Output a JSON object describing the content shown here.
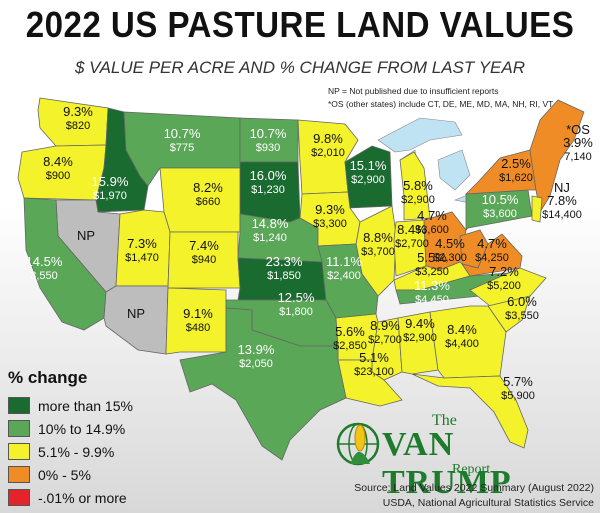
{
  "title": "2022 US PASTURE LAND VALUES",
  "subtitle": "$ VALUE PER ACRE AND % CHANGE FROM LAST YEAR",
  "notes": [
    "NP = Not published due to insufficient reports",
    "*OS (other states) include CT, DE, ME, MD, MA, NH, RI, VT"
  ],
  "legend": {
    "title": "% change",
    "items": [
      {
        "label": "more than 15%",
        "color": "#1a6b30"
      },
      {
        "label": "10% to 14.9%",
        "color": "#5aa857"
      },
      {
        "label": "5.1% - 9.9%",
        "color": "#f4f22a"
      },
      {
        "label": "0% - 5%",
        "color": "#f08c26"
      },
      {
        "label": "-.01% or more",
        "color": "#e4232a"
      }
    ]
  },
  "logo": {
    "the": "The",
    "name": "VAN TRUMP",
    "report": "Report"
  },
  "source": [
    "Source: Land Values 2022 Summary (August 2022)",
    "USDA, National Agricultural Statistics Service"
  ],
  "states": [
    {
      "id": "WA",
      "pct": "9.3%",
      "val": "$820",
      "cat": "yellow"
    },
    {
      "id": "OR",
      "pct": "8.4%",
      "val": "$900",
      "cat": "yellow"
    },
    {
      "id": "ID",
      "pct": "15.9%",
      "val": "$1,970",
      "cat": "dark"
    },
    {
      "id": "MT",
      "pct": "10.7%",
      "val": "$775",
      "cat": "green"
    },
    {
      "id": "ND",
      "pct": "10.7%",
      "val": "$930",
      "cat": "green"
    },
    {
      "id": "MN",
      "pct": "9.8%",
      "val": "$2,010",
      "cat": "yellow"
    },
    {
      "id": "WI",
      "pct": "15.1%",
      "val": "$2,900",
      "cat": "dark"
    },
    {
      "id": "SD",
      "pct": "16.0%",
      "val": "$1,230",
      "cat": "dark"
    },
    {
      "id": "WY",
      "pct": "8.2%",
      "val": "$660",
      "cat": "yellow"
    },
    {
      "id": "NV",
      "pct": "NP",
      "val": "",
      "cat": "gray"
    },
    {
      "id": "CA",
      "pct": "14.5%",
      "val": "3,550",
      "cat": "green"
    },
    {
      "id": "UT",
      "pct": "7.3%",
      "val": "$1,470",
      "cat": "yellow"
    },
    {
      "id": "CO",
      "pct": "7.4%",
      "val": "$940",
      "cat": "yellow"
    },
    {
      "id": "NE",
      "pct": "14.8%",
      "val": "$1,240",
      "cat": "green"
    },
    {
      "id": "IA",
      "pct": "9.3%",
      "val": "$3,300",
      "cat": "yellow"
    },
    {
      "id": "IL",
      "pct": "8.8%",
      "val": "$3,700",
      "cat": "yellow"
    },
    {
      "id": "MI",
      "pct": "5.8%",
      "val": "$2,900",
      "cat": "yellow"
    },
    {
      "id": "IN",
      "pct": "8.4%",
      "val": "$2,700",
      "cat": "yellow"
    },
    {
      "id": "OH",
      "pct": "4.7%",
      "val": "$3,600",
      "cat": "orange"
    },
    {
      "id": "PA",
      "pct": "10.5%",
      "val": "$3,600",
      "cat": "green"
    },
    {
      "id": "NY",
      "pct": "2.5%",
      "val": "$1,620",
      "cat": "orange"
    },
    {
      "id": "OS",
      "pct": "*OS",
      "pct2": "3.9%",
      "val": "7,140",
      "cat": "orange"
    },
    {
      "id": "NJ",
      "pct": "NJ",
      "pct2": "7.8%",
      "val": "$14,400",
      "cat": "yellow"
    },
    {
      "id": "WV",
      "pct": "4.5%",
      "val": "$2,300",
      "cat": "orange"
    },
    {
      "id": "VA",
      "pct": "4.7%",
      "val": "$4,250",
      "cat": "orange"
    },
    {
      "id": "KY",
      "pct": "5.5%",
      "val": "$3,250",
      "cat": "yellow"
    },
    {
      "id": "AZ",
      "pct": "NP",
      "val": "",
      "cat": "gray"
    },
    {
      "id": "NM",
      "pct": "9.1%",
      "val": "$480",
      "cat": "yellow"
    },
    {
      "id": "KS",
      "pct": "23.3%",
      "val": "$1,850",
      "cat": "dark"
    },
    {
      "id": "MO",
      "pct": "11.1%",
      "val": "$2,400",
      "cat": "green"
    },
    {
      "id": "TN",
      "pct": "11.3%",
      "val": "$4,450",
      "cat": "green"
    },
    {
      "id": "NC",
      "pct": "7.2%",
      "val": "$5,200",
      "cat": "yellow"
    },
    {
      "id": "OK",
      "pct": "12.5%",
      "val": "$1,800",
      "cat": "green"
    },
    {
      "id": "AR",
      "pct": "5.6%",
      "val": "$2,850",
      "cat": "yellow"
    },
    {
      "id": "SC",
      "pct": "6.0%",
      "val": "$3,550",
      "cat": "yellow"
    },
    {
      "id": "MS",
      "pct": "8.9%",
      "val": "$2,700",
      "cat": "yellow"
    },
    {
      "id": "AL",
      "pct": "9.4%",
      "val": "$2,900",
      "cat": "yellow"
    },
    {
      "id": "GA",
      "pct": "8.4%",
      "val": "$4,400",
      "cat": "yellow"
    },
    {
      "id": "TX",
      "pct": "13.9%",
      "val": "$2,050",
      "cat": "green"
    },
    {
      "id": "LA",
      "pct": "5.1%",
      "val": "$23,100",
      "cat": "yellow"
    },
    {
      "id": "FL",
      "pct": "5.7%",
      "val": "$5,900",
      "cat": "yellow"
    }
  ],
  "colors": {
    "dark": "#1a6b30",
    "green": "#5aa857",
    "yellow": "#f4f22a",
    "orange": "#f08c26",
    "gray": "#bdbdbd",
    "water": "#bfe3f2"
  }
}
